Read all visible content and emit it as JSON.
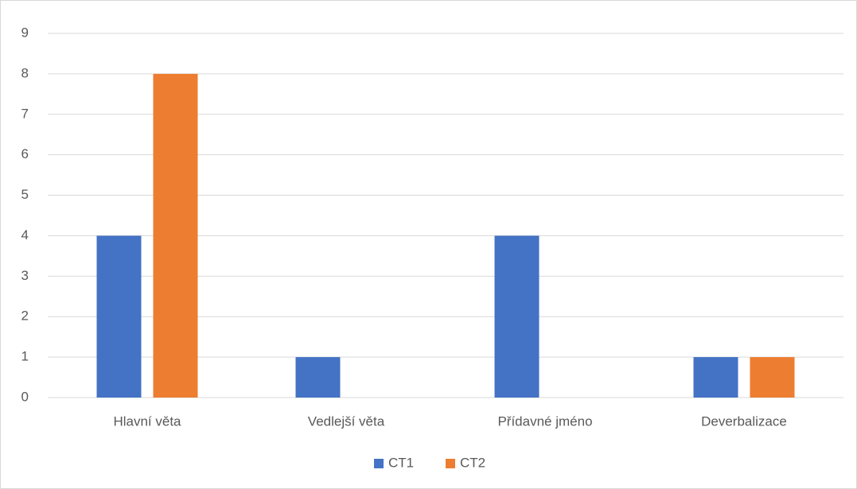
{
  "chart_data": {
    "type": "bar",
    "categories": [
      "Hlavní věta",
      "Vedlejší věta",
      "Přídavné jméno",
      "Deverbalizace"
    ],
    "series": [
      {
        "name": "CT1",
        "color": "#4472c4",
        "values": [
          4,
          1,
          4,
          1
        ]
      },
      {
        "name": "CT2",
        "color": "#ed7d31",
        "values": [
          8,
          0,
          0,
          1
        ]
      }
    ],
    "ylim": [
      0,
      9
    ],
    "yticks": [
      0,
      1,
      2,
      3,
      4,
      5,
      6,
      7,
      8,
      9
    ],
    "grid": true,
    "legend": "bottom"
  }
}
